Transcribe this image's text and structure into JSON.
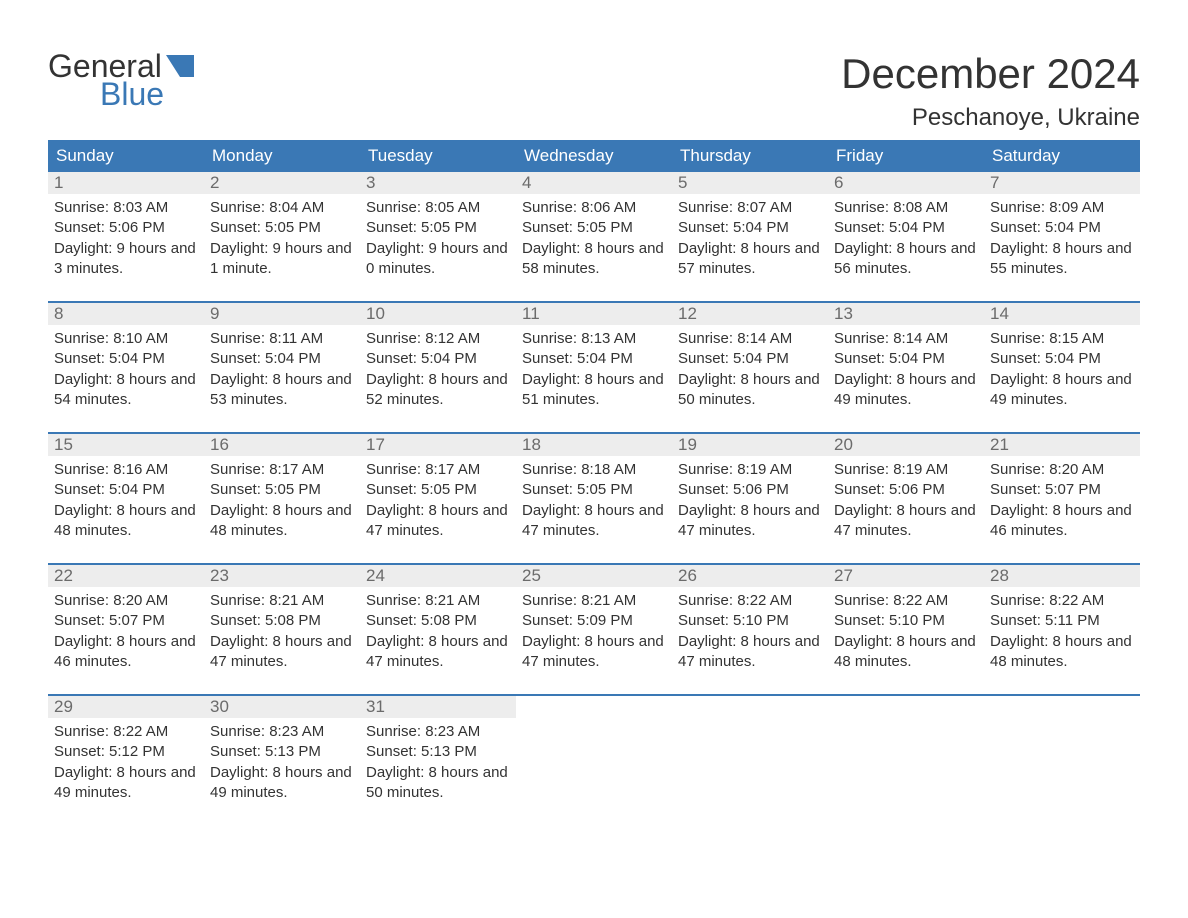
{
  "logo": {
    "line1": "General",
    "line2": "Blue",
    "flag_color": "#3a78b5"
  },
  "title": "December 2024",
  "location": "Peschanoye, Ukraine",
  "colors": {
    "header_bg": "#3a78b5",
    "header_text": "#ffffff",
    "daynum_bg": "#ededed",
    "daynum_text": "#6b6b6b",
    "body_text": "#333333",
    "page_bg": "#ffffff",
    "week_border": "#3a78b5"
  },
  "fonts": {
    "title_size": 42,
    "location_size": 24,
    "header_size": 17,
    "daynum_size": 17,
    "body_size": 15
  },
  "day_headers": [
    "Sunday",
    "Monday",
    "Tuesday",
    "Wednesday",
    "Thursday",
    "Friday",
    "Saturday"
  ],
  "weeks": [
    [
      {
        "n": "1",
        "sunrise": "8:03 AM",
        "sunset": "5:06 PM",
        "daylight": "9 hours and 3 minutes."
      },
      {
        "n": "2",
        "sunrise": "8:04 AM",
        "sunset": "5:05 PM",
        "daylight": "9 hours and 1 minute."
      },
      {
        "n": "3",
        "sunrise": "8:05 AM",
        "sunset": "5:05 PM",
        "daylight": "9 hours and 0 minutes."
      },
      {
        "n": "4",
        "sunrise": "8:06 AM",
        "sunset": "5:05 PM",
        "daylight": "8 hours and 58 minutes."
      },
      {
        "n": "5",
        "sunrise": "8:07 AM",
        "sunset": "5:04 PM",
        "daylight": "8 hours and 57 minutes."
      },
      {
        "n": "6",
        "sunrise": "8:08 AM",
        "sunset": "5:04 PM",
        "daylight": "8 hours and 56 minutes."
      },
      {
        "n": "7",
        "sunrise": "8:09 AM",
        "sunset": "5:04 PM",
        "daylight": "8 hours and 55 minutes."
      }
    ],
    [
      {
        "n": "8",
        "sunrise": "8:10 AM",
        "sunset": "5:04 PM",
        "daylight": "8 hours and 54 minutes."
      },
      {
        "n": "9",
        "sunrise": "8:11 AM",
        "sunset": "5:04 PM",
        "daylight": "8 hours and 53 minutes."
      },
      {
        "n": "10",
        "sunrise": "8:12 AM",
        "sunset": "5:04 PM",
        "daylight": "8 hours and 52 minutes."
      },
      {
        "n": "11",
        "sunrise": "8:13 AM",
        "sunset": "5:04 PM",
        "daylight": "8 hours and 51 minutes."
      },
      {
        "n": "12",
        "sunrise": "8:14 AM",
        "sunset": "5:04 PM",
        "daylight": "8 hours and 50 minutes."
      },
      {
        "n": "13",
        "sunrise": "8:14 AM",
        "sunset": "5:04 PM",
        "daylight": "8 hours and 49 minutes."
      },
      {
        "n": "14",
        "sunrise": "8:15 AM",
        "sunset": "5:04 PM",
        "daylight": "8 hours and 49 minutes."
      }
    ],
    [
      {
        "n": "15",
        "sunrise": "8:16 AM",
        "sunset": "5:04 PM",
        "daylight": "8 hours and 48 minutes."
      },
      {
        "n": "16",
        "sunrise": "8:17 AM",
        "sunset": "5:05 PM",
        "daylight": "8 hours and 48 minutes."
      },
      {
        "n": "17",
        "sunrise": "8:17 AM",
        "sunset": "5:05 PM",
        "daylight": "8 hours and 47 minutes."
      },
      {
        "n": "18",
        "sunrise": "8:18 AM",
        "sunset": "5:05 PM",
        "daylight": "8 hours and 47 minutes."
      },
      {
        "n": "19",
        "sunrise": "8:19 AM",
        "sunset": "5:06 PM",
        "daylight": "8 hours and 47 minutes."
      },
      {
        "n": "20",
        "sunrise": "8:19 AM",
        "sunset": "5:06 PM",
        "daylight": "8 hours and 47 minutes."
      },
      {
        "n": "21",
        "sunrise": "8:20 AM",
        "sunset": "5:07 PM",
        "daylight": "8 hours and 46 minutes."
      }
    ],
    [
      {
        "n": "22",
        "sunrise": "8:20 AM",
        "sunset": "5:07 PM",
        "daylight": "8 hours and 46 minutes."
      },
      {
        "n": "23",
        "sunrise": "8:21 AM",
        "sunset": "5:08 PM",
        "daylight": "8 hours and 47 minutes."
      },
      {
        "n": "24",
        "sunrise": "8:21 AM",
        "sunset": "5:08 PM",
        "daylight": "8 hours and 47 minutes."
      },
      {
        "n": "25",
        "sunrise": "8:21 AM",
        "sunset": "5:09 PM",
        "daylight": "8 hours and 47 minutes."
      },
      {
        "n": "26",
        "sunrise": "8:22 AM",
        "sunset": "5:10 PM",
        "daylight": "8 hours and 47 minutes."
      },
      {
        "n": "27",
        "sunrise": "8:22 AM",
        "sunset": "5:10 PM",
        "daylight": "8 hours and 48 minutes."
      },
      {
        "n": "28",
        "sunrise": "8:22 AM",
        "sunset": "5:11 PM",
        "daylight": "8 hours and 48 minutes."
      }
    ],
    [
      {
        "n": "29",
        "sunrise": "8:22 AM",
        "sunset": "5:12 PM",
        "daylight": "8 hours and 49 minutes."
      },
      {
        "n": "30",
        "sunrise": "8:23 AM",
        "sunset": "5:13 PM",
        "daylight": "8 hours and 49 minutes."
      },
      {
        "n": "31",
        "sunrise": "8:23 AM",
        "sunset": "5:13 PM",
        "daylight": "8 hours and 50 minutes."
      },
      null,
      null,
      null,
      null
    ]
  ],
  "labels": {
    "sunrise": "Sunrise:",
    "sunset": "Sunset:",
    "daylight": "Daylight:"
  }
}
